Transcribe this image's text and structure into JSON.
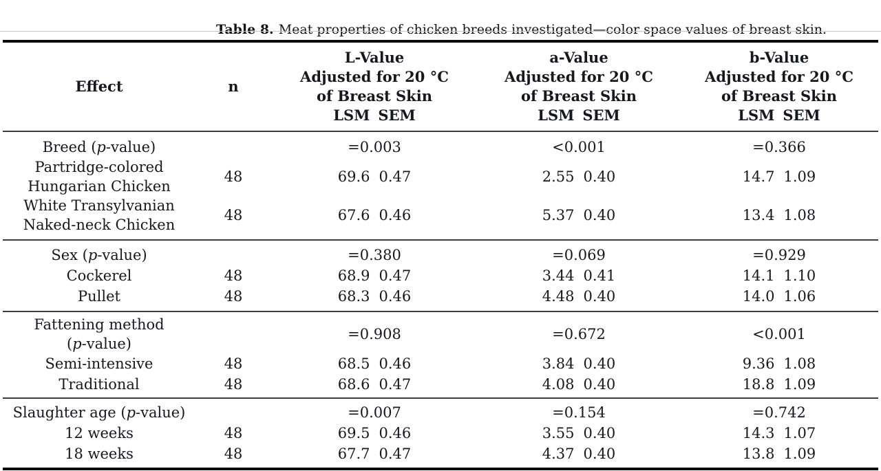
{
  "caption": {
    "label": "Table 8.",
    "text": "Meat properties of chicken breeds investigated—color space values of breast skin."
  },
  "table": {
    "header": {
      "effect": "Effect",
      "n": "n",
      "value_columns": [
        {
          "title": "L-Value",
          "adjust": "Adjusted for 20 °C",
          "subject": "of Breast Skin",
          "stat1": "LSM",
          "stat2": "SEM"
        },
        {
          "title": "a-Value",
          "adjust": "Adjusted for 20 °C",
          "subject": "of Breast Skin",
          "stat1": "LSM",
          "stat2": "SEM"
        },
        {
          "title": "b-Value",
          "adjust": "Adjusted for 20 °C",
          "subject": "of Breast Skin",
          "stat1": "LSM",
          "stat2": "SEM"
        }
      ]
    },
    "sections": [
      {
        "rows": [
          {
            "effect": [
              [
                {
                  "t": "Breed ("
                },
                {
                  "t": "p",
                  "i": true
                },
                {
                  "t": "-value)"
                }
              ]
            ],
            "n": "",
            "vals": [
              {
                "p": "=0.003"
              },
              {
                "p": "<0.001"
              },
              {
                "p": "=0.366"
              }
            ]
          },
          {
            "effect": [
              [
                {
                  "t": "Partridge-colored"
                }
              ],
              [
                {
                  "t": "Hungarian Chicken"
                }
              ]
            ],
            "n": "48",
            "vals": [
              {
                "lsm": "69.6",
                "sem": "0.47"
              },
              {
                "lsm": "2.55",
                "sem": "0.40"
              },
              {
                "lsm": "14.7",
                "sem": "1.09"
              }
            ]
          },
          {
            "effect": [
              [
                {
                  "t": "White Transylvanian"
                }
              ],
              [
                {
                  "t": "Naked-neck Chicken"
                }
              ]
            ],
            "n": "48",
            "vals": [
              {
                "lsm": "67.6",
                "sem": "0.46"
              },
              {
                "lsm": "5.37",
                "sem": "0.40"
              },
              {
                "lsm": "13.4",
                "sem": "1.08"
              }
            ]
          }
        ]
      },
      {
        "rows": [
          {
            "effect": [
              [
                {
                  "t": "Sex ("
                },
                {
                  "t": "p",
                  "i": true
                },
                {
                  "t": "-value)"
                }
              ]
            ],
            "n": "",
            "vals": [
              {
                "p": "=0.380"
              },
              {
                "p": "=0.069"
              },
              {
                "p": "=0.929"
              }
            ]
          },
          {
            "effect": [
              [
                {
                  "t": "Cockerel"
                }
              ]
            ],
            "n": "48",
            "vals": [
              {
                "lsm": "68.9",
                "sem": "0.47"
              },
              {
                "lsm": "3.44",
                "sem": "0.41"
              },
              {
                "lsm": "14.1",
                "sem": "1.10"
              }
            ]
          },
          {
            "effect": [
              [
                {
                  "t": "Pullet"
                }
              ]
            ],
            "n": "48",
            "vals": [
              {
                "lsm": "68.3",
                "sem": "0.46"
              },
              {
                "lsm": "4.48",
                "sem": "0.40"
              },
              {
                "lsm": "14.0",
                "sem": "1.06"
              }
            ]
          }
        ]
      },
      {
        "rows": [
          {
            "effect": [
              [
                {
                  "t": "Fattening method"
                }
              ],
              [
                {
                  "t": "("
                },
                {
                  "t": "p",
                  "i": true
                },
                {
                  "t": "-value)"
                }
              ]
            ],
            "n": "",
            "vals": [
              {
                "p": "=0.908"
              },
              {
                "p": "=0.672"
              },
              {
                "p": "<0.001"
              }
            ]
          },
          {
            "effect": [
              [
                {
                  "t": "Semi-intensive"
                }
              ]
            ],
            "n": "48",
            "vals": [
              {
                "lsm": "68.5",
                "sem": "0.46"
              },
              {
                "lsm": "3.84",
                "sem": "0.40"
              },
              {
                "lsm": "9.36",
                "sem": "1.08"
              }
            ]
          },
          {
            "effect": [
              [
                {
                  "t": "Traditional"
                }
              ]
            ],
            "n": "48",
            "vals": [
              {
                "lsm": "68.6",
                "sem": "0.47"
              },
              {
                "lsm": "4.08",
                "sem": "0.40"
              },
              {
                "lsm": "18.8",
                "sem": "1.09"
              }
            ]
          }
        ]
      },
      {
        "rows": [
          {
            "effect": [
              [
                {
                  "t": "Slaughter age ("
                },
                {
                  "t": "p",
                  "i": true
                },
                {
                  "t": "-value)"
                }
              ]
            ],
            "n": "",
            "vals": [
              {
                "p": "=0.007"
              },
              {
                "p": "=0.154"
              },
              {
                "p": "=0.742"
              }
            ]
          },
          {
            "effect": [
              [
                {
                  "t": "12 weeks"
                }
              ]
            ],
            "n": "48",
            "vals": [
              {
                "lsm": "69.5",
                "sem": "0.46"
              },
              {
                "lsm": "3.55",
                "sem": "0.40"
              },
              {
                "lsm": "14.3",
                "sem": "1.07"
              }
            ]
          },
          {
            "effect": [
              [
                {
                  "t": "18 weeks"
                }
              ]
            ],
            "n": "48",
            "vals": [
              {
                "lsm": "67.7",
                "sem": "0.47"
              },
              {
                "lsm": "4.37",
                "sem": "0.40"
              },
              {
                "lsm": "13.8",
                "sem": "1.09"
              }
            ]
          }
        ]
      }
    ]
  }
}
